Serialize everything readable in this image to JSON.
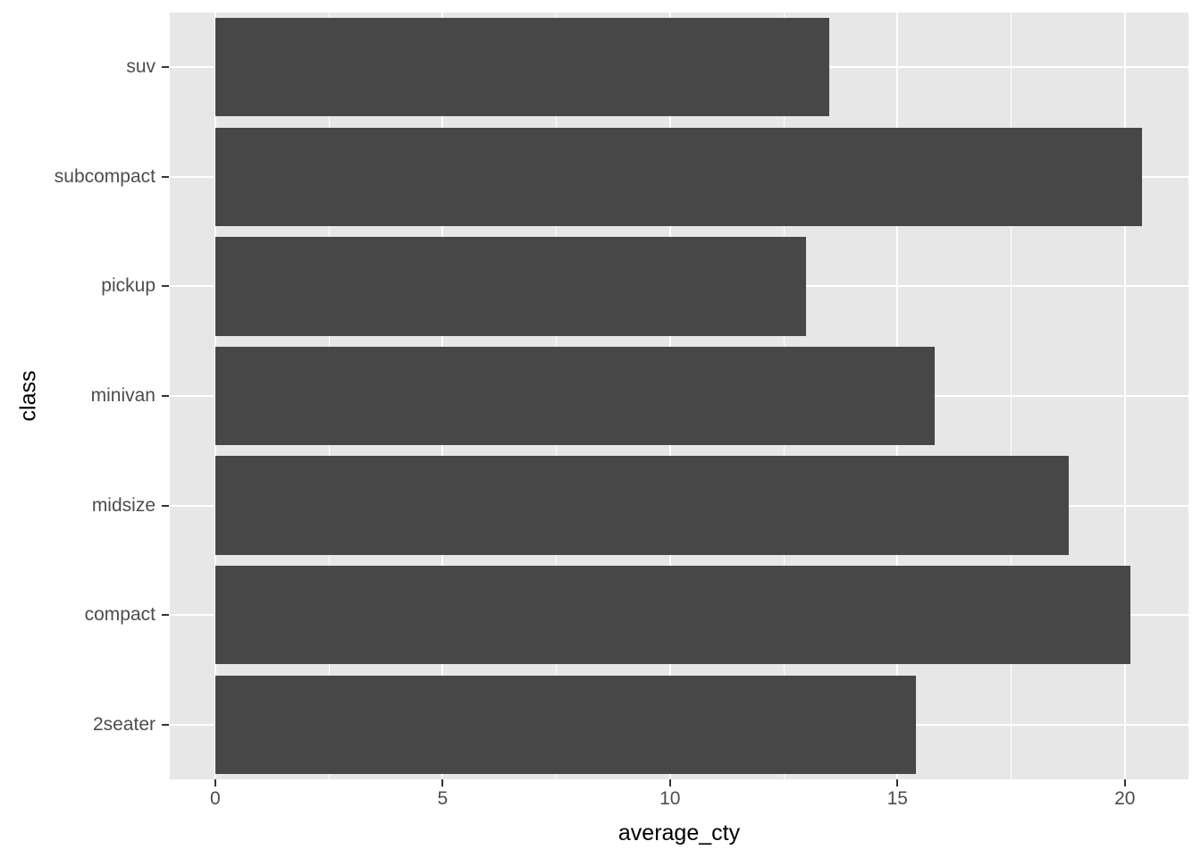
{
  "chart_data": {
    "type": "bar",
    "orientation": "horizontal",
    "title": "",
    "xlabel": "average_cty",
    "ylabel": "class",
    "categories": [
      "suv",
      "subcompact",
      "pickup",
      "minivan",
      "midsize",
      "compact",
      "2seater"
    ],
    "values": [
      13.5,
      20.37,
      13.0,
      15.82,
      18.76,
      20.13,
      15.4
    ],
    "x_ticks": [
      0,
      5,
      10,
      15,
      20
    ],
    "x_tick_labels": [
      "0",
      "5",
      "10",
      "15",
      "20"
    ],
    "x_minor_ticks": [
      2.5,
      7.5,
      12.5,
      17.5
    ],
    "xlim": [
      -1.0,
      21.4
    ],
    "grid": "on",
    "legend": "none",
    "style": {
      "panel_background": "#E7E7E7",
      "grid_color": "#FFFFFF",
      "bar_fill": "#474747",
      "tick_label_color": "#4D4D4D",
      "axis_title_color": "#000000"
    }
  }
}
